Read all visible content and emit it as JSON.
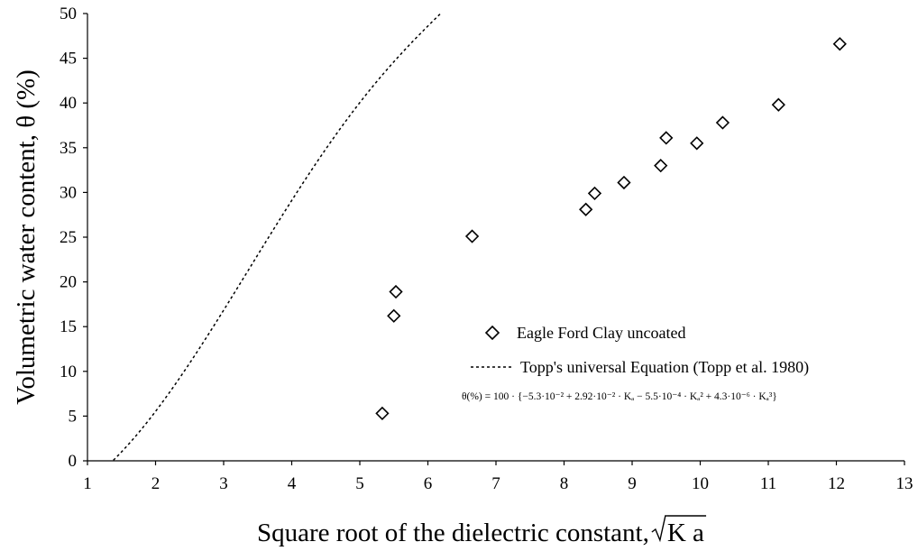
{
  "chart_data": {
    "type": "scatter",
    "xlabel_prefix": "Square root of the dielectric constant, ",
    "xlabel_radicand": "K a",
    "ylabel": "Volumetric water content, θ (%)",
    "xlim": [
      1,
      13
    ],
    "ylim": [
      0,
      50
    ],
    "xticks": [
      "1",
      "2",
      "3",
      "4",
      "5",
      "6",
      "7",
      "8",
      "9",
      "10",
      "11",
      "12",
      "13"
    ],
    "yticks": [
      "0",
      "5",
      "10",
      "15",
      "20",
      "25",
      "30",
      "35",
      "40",
      "45",
      "50"
    ],
    "legend_position": "lower-right",
    "series": [
      {
        "name": "Eagle Ford Clay uncoated",
        "kind": "scatter",
        "marker": "diamond",
        "x": [
          5.33,
          5.5,
          5.53,
          6.65,
          8.32,
          8.45,
          8.88,
          9.42,
          9.5,
          9.95,
          10.33,
          11.15,
          12.05
        ],
        "y": [
          5.3,
          16.2,
          18.9,
          25.1,
          28.1,
          29.9,
          31.1,
          33.0,
          36.1,
          35.5,
          37.8,
          39.8,
          46.6
        ]
      },
      {
        "name": "Topp's universal Equation (Topp et al. 1980)",
        "kind": "line",
        "style": "dotted",
        "equation": "θ(%) = 100 · {−5.3·10⁻² + 2.92·10⁻² · Kₐ − 5.5·10⁻⁴ · Kₐ² + 4.3·10⁻⁶ · Kₐ³}"
      }
    ]
  }
}
